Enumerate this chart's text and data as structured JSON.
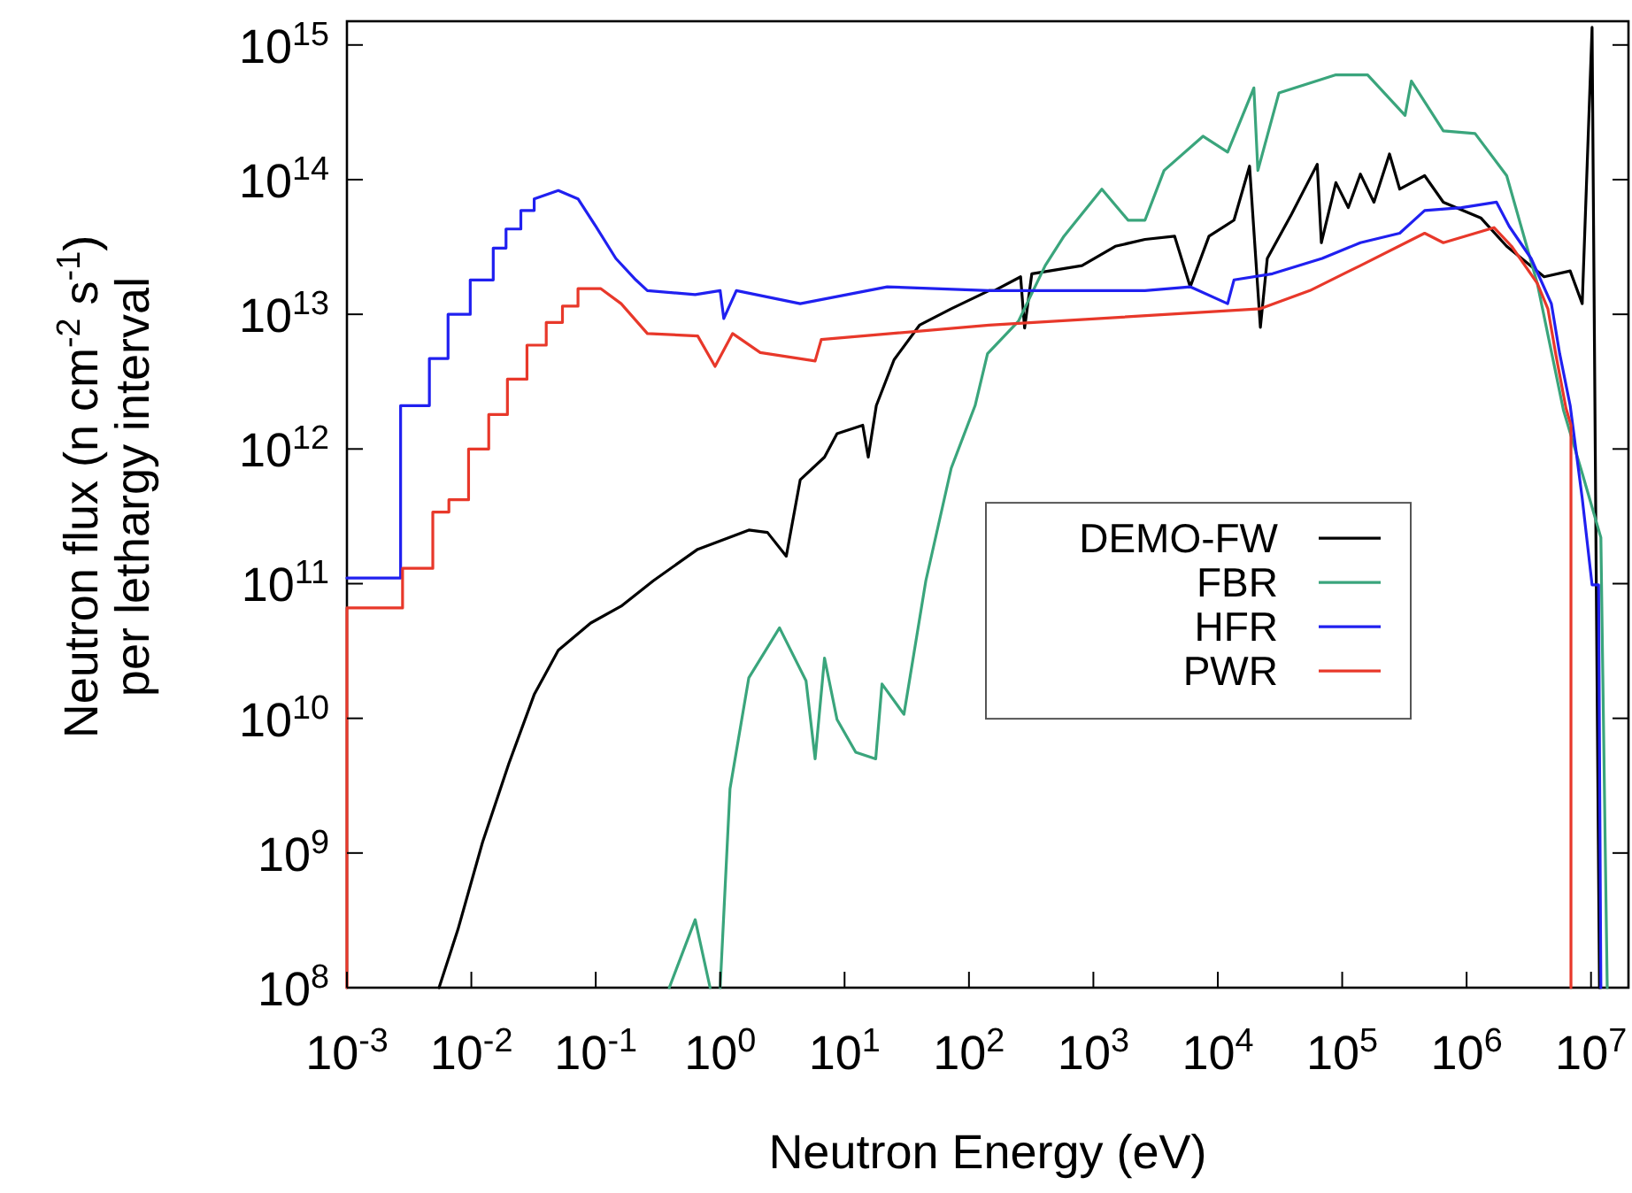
{
  "chart_data": {
    "type": "line",
    "xlabel": "Neutron Energy (eV)",
    "ylabel": "Neutron flux (n cm$^{-2}$ s$^{-1}$)\nper lethargy interval",
    "log": "xy",
    "grid": false,
    "legend": "center right",
    "marker": "none",
    "line_style": "solid",
    "xlim": [
      0.001,
      20000000
    ],
    "ylim": [
      100000000,
      1500000000000000
    ],
    "xticks": [
      {
        "value": 0.001,
        "label": "10$^{-3}$"
      },
      {
        "value": 0.01,
        "label": "10$^{-2}$"
      },
      {
        "value": 0.1,
        "label": "10$^{-1}$"
      },
      {
        "value": 1,
        "label": "10$^{0}$"
      },
      {
        "value": 10,
        "label": "10$^{1}$"
      },
      {
        "value": 100,
        "label": "10$^{2}$"
      },
      {
        "value": 1000,
        "label": "10$^{3}$"
      },
      {
        "value": 10000,
        "label": "10$^{4}$"
      },
      {
        "value": 100000,
        "label": "10$^{5}$"
      },
      {
        "value": 1000000,
        "label": "10$^{6}$"
      },
      {
        "value": 10000000,
        "label": "10$^{7}$"
      }
    ],
    "yticks": [
      {
        "value": 100000000.0,
        "label": "10$^{8}$"
      },
      {
        "value": 1000000000.0,
        "label": "10$^{9}$"
      },
      {
        "value": 10000000000.0,
        "label": "10$^{10}$"
      },
      {
        "value": 100000000000.0,
        "label": "10$^{11}$"
      },
      {
        "value": 1000000000000.0,
        "label": "10$^{12}$"
      },
      {
        "value": 10000000000000.0,
        "label": "10$^{13}$"
      },
      {
        "value": 100000000000000.0,
        "label": "10$^{14}$"
      },
      {
        "value": 1000000000000000.0,
        "label": "10$^{15}$"
      }
    ],
    "series": [
      {
        "name": "DEMO-FW",
        "color": "#000000",
        "x": [
          0.0055,
          0.0078,
          0.0123,
          0.02,
          0.032,
          0.05,
          0.091,
          0.16,
          0.29,
          0.66,
          1.7,
          2.4,
          3.4,
          4.4,
          6.9,
          8.7,
          14,
          15.5,
          18,
          25,
          40,
          72,
          145,
          160,
          260,
          280,
          320,
          810,
          1500,
          2600,
          4500,
          6000,
          8500,
          13500,
          18000,
          22000,
          25000,
          39000,
          63000,
          68000,
          89000,
          112000,
          140000,
          180000,
          240000,
          290000,
          460000,
          650000,
          1300000,
          2100000,
          4200000,
          6800000,
          8500000,
          10200000,
          11000000,
          11700000
        ],
        "values": [
          100000000.0,
          270000000.0,
          1200000000.0,
          4600000000.0,
          15000000000.0,
          32000000000.0,
          51000000000.0,
          68000000000.0,
          105000000000.0,
          180000000000.0,
          250000000000.0,
          240000000000.0,
          160000000000.0,
          590000000000.0,
          870000000000.0,
          1300000000000.0,
          1500000000000.0,
          870000000000.0,
          2100000000000.0,
          4600000000000.0,
          8300000000000.0,
          11000000000000.0,
          15000000000000.0,
          15000000000000.0,
          19000000000000.0,
          7900000000000.0,
          20000000000000.0,
          23000000000000.0,
          32000000000000.0,
          36000000000000.0,
          38000000000000.0,
          16000000000000.0,
          38000000000000.0,
          50000000000000.0,
          126000000000000.0,
          8000000000000.0,
          26000000000000.0,
          55000000000000.0,
          130000000000000.0,
          34000000000000.0,
          95000000000000.0,
          62000000000000.0,
          110000000000000.0,
          68000000000000.0,
          155000000000000.0,
          85000000000000.0,
          107000000000000.0,
          68000000000000.0,
          52000000000000.0,
          32000000000000.0,
          19000000000000.0,
          21000000000000.0,
          12000000000000.0,
          1350000000000000.0,
          130000000000.0,
          100000000.0
        ]
      },
      {
        "name": "FBR",
        "color": "#3aa57c",
        "x": [
          0.39,
          0.63,
          0.83,
          0.9,
          1.0,
          1.2,
          1.7,
          3.0,
          4.9,
          5.8,
          6.9,
          8.7,
          12.3,
          17.8,
          20,
          30,
          45,
          72,
          112,
          141,
          250,
          410,
          580,
          1170,
          1900,
          2600,
          3700,
          7600,
          12000,
          19500,
          21000,
          31000,
          89000,
          160000,
          320000,
          360000,
          650000,
          1170000,
          2100000,
          3700000,
          6000000,
          8500000,
          12000000,
          13500000
        ],
        "values": [
          100000000.0,
          320000000.0,
          100000000.0,
          null,
          100000000.0,
          3000000000.0,
          20000000000.0,
          47000000000.0,
          19000000000.0,
          5000000000.0,
          28000000000.0,
          9800000000.0,
          5600000000.0,
          5000000000.0,
          18000000000.0,
          10700000000.0,
          105000000000.0,
          720000000000.0,
          2100000000000.0,
          5100000000000.0,
          8900000000000.0,
          23000000000000.0,
          38000000000000.0,
          85000000000000.0,
          50000000000000.0,
          50000000000000.0,
          117000000000000.0,
          210000000000000.0,
          160000000000000.0,
          480000000000000.0,
          117000000000000.0,
          440000000000000.0,
          600000000000000.0,
          600000000000000.0,
          300000000000000.0,
          540000000000000.0,
          230000000000000.0,
          220000000000000.0,
          107000000000000.0,
          17000000000000.0,
          1950000000000.0,
          660000000000.0,
          220000000000.0,
          100000000.0
        ]
      },
      {
        "name": "HFR",
        "color": "#2020f0",
        "x": [
          0.001,
          0.0027,
          0.0027,
          0.0046,
          0.0046,
          0.0065,
          0.0065,
          0.0098,
          0.0098,
          0.015,
          0.015,
          0.019,
          0.019,
          0.025,
          0.025,
          0.032,
          0.032,
          0.05,
          0.072,
          0.1,
          0.145,
          0.21,
          0.26,
          0.63,
          1.0,
          1.07,
          1.35,
          4.4,
          22,
          145,
          2600,
          6000,
          12000,
          13500,
          27500,
          69000,
          140000,
          290000,
          460000,
          910000,
          1740000,
          2200000,
          3300000,
          4800000,
          5600000,
          6800000,
          8500000,
          10200000,
          11500000,
          12000000
        ],
        "values": [
          110000000000.0,
          110000000000.0,
          2100000000000.0,
          2100000000000.0,
          4700000000000.0,
          4700000000000.0,
          10000000000000.0,
          10000000000000.0,
          18000000000000.0,
          18000000000000.0,
          31000000000000.0,
          31000000000000.0,
          43000000000000.0,
          43000000000000.0,
          59000000000000.0,
          59000000000000.0,
          72000000000000.0,
          83000000000000.0,
          72000000000000.0,
          45000000000000.0,
          26000000000000.0,
          18000000000000.0,
          15000000000000.0,
          14000000000000.0,
          15000000000000.0,
          9300000000000.0,
          15000000000000.0,
          12000000000000.0,
          16000000000000.0,
          15000000000000.0,
          15000000000000.0,
          16000000000000.0,
          12000000000000.0,
          18000000000000.0,
          20000000000000.0,
          26000000000000.0,
          34000000000000.0,
          40000000000000.0,
          59000000000000.0,
          62000000000000.0,
          68000000000000.0,
          45000000000000.0,
          26000000000000.0,
          12000000000000.0,
          5100000000000.0,
          2100000000000.0,
          430000000000.0,
          98000000000.0,
          98000000000.0,
          100000000.0
        ]
      },
      {
        "name": "PWR",
        "color": "#e8382a",
        "x": [
          0.001,
          0.001,
          0.0028,
          0.0028,
          0.0049,
          0.0049,
          0.0066,
          0.0066,
          0.0095,
          0.0095,
          0.0138,
          0.0138,
          0.0195,
          0.0195,
          0.028,
          0.028,
          0.04,
          0.04,
          0.054,
          0.054,
          0.072,
          0.072,
          0.11,
          0.16,
          0.26,
          0.66,
          0.91,
          1.26,
          2.1,
          5.8,
          6.5,
          145,
          22000,
          55000,
          140000,
          460000,
          650000,
          1660000,
          2300000,
          3700000,
          4500000,
          5200000,
          6300000,
          6900000,
          6900000
        ],
        "values": [
          100000000.0,
          66000000000.0,
          66000000000.0,
          130000000000.0,
          130000000000.0,
          340000000000.0,
          340000000000.0,
          420000000000.0,
          420000000000.0,
          1000000000000.0,
          1000000000000.0,
          1800000000000.0,
          1800000000000.0,
          3300000000000.0,
          3300000000000.0,
          5900000000000.0,
          5900000000000.0,
          8700000000000.0,
          8700000000000.0,
          11500000000000.0,
          11500000000000.0,
          15500000000000.0,
          15500000000000.0,
          12000000000000.0,
          7200000000000.0,
          6900000000000.0,
          4100000000000.0,
          7200000000000.0,
          5200000000000.0,
          4500000000000.0,
          6500000000000.0,
          8300000000000.0,
          11000000000000.0,
          15000000000000.0,
          23000000000000.0,
          40000000000000.0,
          34000000000000.0,
          44000000000000.0,
          32000000000000.0,
          17000000000000.0,
          11000000000000.0,
          5100000000000.0,
          2000000000000.0,
          1500000000000.0,
          100000000.0
        ]
      }
    ]
  }
}
